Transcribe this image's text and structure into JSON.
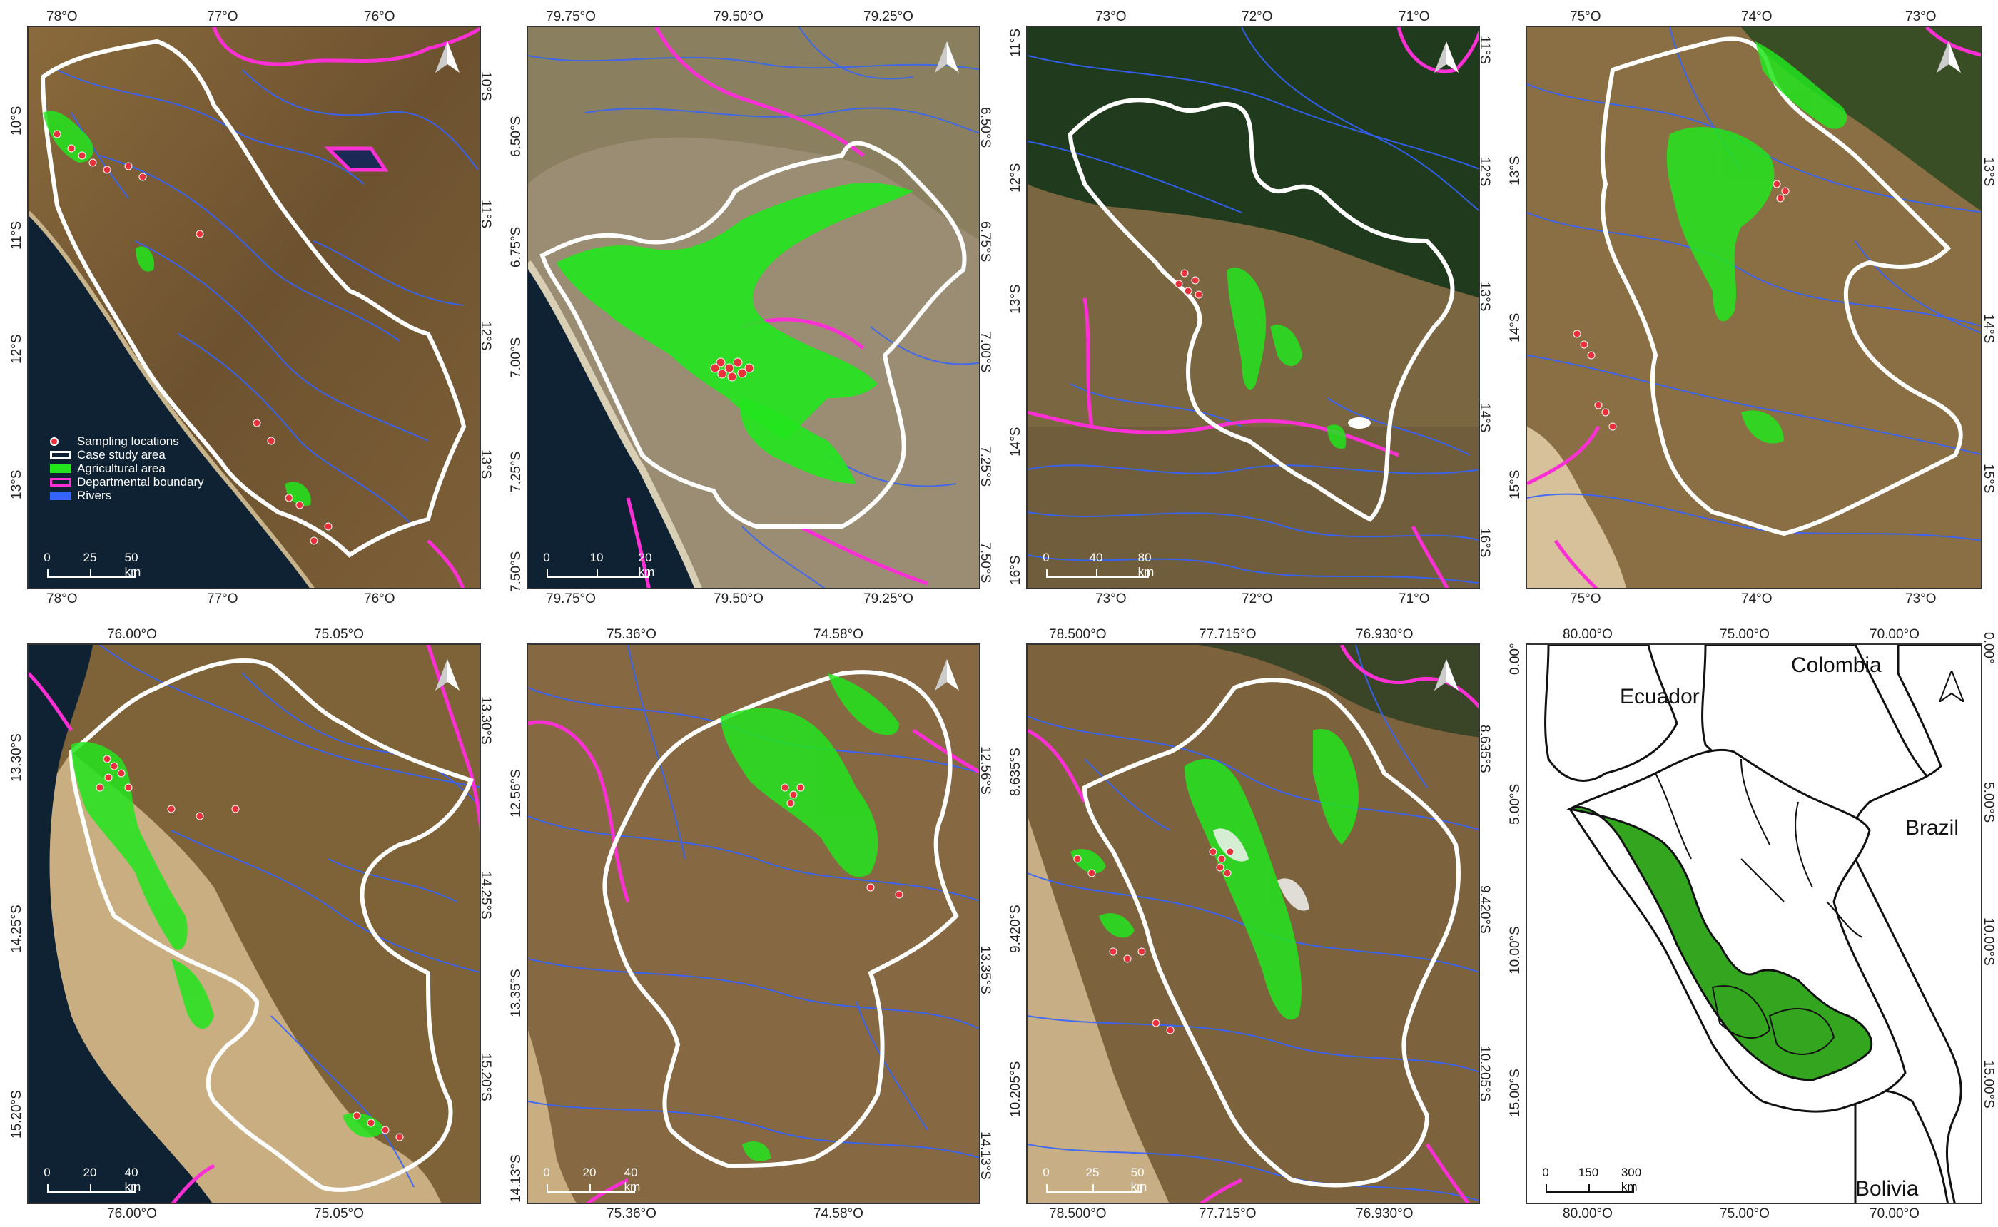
{
  "colors": {
    "sampling": "#e8313b",
    "case_study": "#ffffff",
    "agricultural": "#22e51d",
    "departmental": "#ff2fd6",
    "rivers": "#3463ff",
    "peru_fill": "#33a51f"
  },
  "panels": [
    {
      "id": "p1",
      "top_ticks": [
        "78°O",
        "77°O",
        "76°O"
      ],
      "bottom_ticks": [
        "78°O",
        "77°O",
        "76°O"
      ],
      "left_ticks": [
        "10°S",
        "11°S",
        "12°S",
        "13°S"
      ],
      "right_ticks": [
        "10°S",
        "11°S",
        "12°S",
        "13°S"
      ],
      "scale": [
        "0",
        "25",
        "50 km"
      ],
      "legend": [
        {
          "label": "Sampling locations",
          "icon": "sampling-point"
        },
        {
          "label": "Case study area",
          "icon": "white-outline"
        },
        {
          "label": "Agricultural area",
          "icon": "green-fill"
        },
        {
          "label": "Departmental boundary",
          "icon": "magenta-outline"
        },
        {
          "label": "Rivers",
          "icon": "blue-line"
        }
      ]
    },
    {
      "id": "p2",
      "top_ticks": [
        "79.75°O",
        "79.50°O",
        "79.25°O"
      ],
      "bottom_ticks": [
        "79.75°O",
        "79.50°O",
        "79.25°O"
      ],
      "left_ticks": [
        "6.50°S",
        "6.75°S",
        "7.00°S",
        "7.25°S",
        "7.50°S"
      ],
      "right_ticks": [
        "6.50°S",
        "6.75°S",
        "7.00°S",
        "7.25°S",
        "7.50°S"
      ],
      "scale": [
        "0",
        "10",
        "20 km"
      ]
    },
    {
      "id": "p3",
      "top_ticks": [
        "73°O",
        "72°O",
        "71°O"
      ],
      "bottom_ticks": [
        "73°O",
        "72°O",
        "71°O"
      ],
      "left_ticks": [
        "11°S",
        "12°S",
        "13°S",
        "14°S",
        "16°S"
      ],
      "right_ticks": [
        "11°S",
        "12°S",
        "13°S",
        "14°S",
        "16°S"
      ],
      "scale": [
        "0",
        "40",
        "80 km"
      ]
    },
    {
      "id": "p4",
      "top_ticks": [
        "75°O",
        "74°O",
        "73°O"
      ],
      "bottom_ticks": [
        "75°O",
        "74°O",
        "73°O"
      ],
      "left_ticks": [
        "13°S",
        "14°S",
        "15°S"
      ],
      "right_ticks": [
        "13°S",
        "14°S",
        "15°S"
      ],
      "scale": []
    },
    {
      "id": "p5",
      "top_ticks": [
        "76.00°O",
        "75.05°O"
      ],
      "bottom_ticks": [
        "76.00°O",
        "75.05°O"
      ],
      "left_ticks": [
        "13.30°S",
        "14.25°S",
        "15.20°S"
      ],
      "right_ticks": [
        "13.30°S",
        "14.25°S",
        "15.20°S"
      ],
      "scale": [
        "0",
        "20",
        "40 km"
      ]
    },
    {
      "id": "p6",
      "top_ticks": [
        "75.36°O",
        "74.58°O"
      ],
      "bottom_ticks": [
        "75.36°O",
        "74.58°O"
      ],
      "left_ticks": [
        "12.56°S",
        "13.35°S",
        "14.13°S"
      ],
      "right_ticks": [
        "12.56°S",
        "13.35°S",
        "14.13°S"
      ],
      "scale": [
        "0",
        "20",
        "40 km"
      ]
    },
    {
      "id": "p7",
      "top_ticks": [
        "78.500°O",
        "77.715°O",
        "76.930°O"
      ],
      "bottom_ticks": [
        "78.500°O",
        "77.715°O",
        "76.930°O"
      ],
      "left_ticks": [
        "8.635°S",
        "9.420°S",
        "10.205°S"
      ],
      "right_ticks": [
        "8.635°S",
        "9.420°S",
        "10.205°S"
      ],
      "scale": [
        "0",
        "25",
        "50 km"
      ]
    },
    {
      "id": "p8",
      "top_ticks": [
        "80.00°O",
        "75.00°O",
        "70.00°O"
      ],
      "bottom_ticks": [
        "80.00°O",
        "75.00°O",
        "70.00°O"
      ],
      "left_ticks": [
        "0.00°",
        "5.00°S",
        "10.00°S",
        "15.00°S"
      ],
      "right_ticks": [
        "0.00°",
        "5.00°S",
        "10.00°S",
        "15.00°S"
      ],
      "scale": [
        "0",
        "150",
        "300 km"
      ],
      "countries": [
        "Ecuador",
        "Colombia",
        "Brazil",
        "Bolivia"
      ]
    }
  ]
}
